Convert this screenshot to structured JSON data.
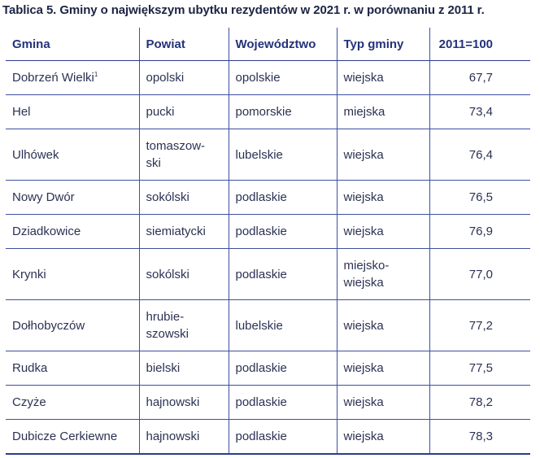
{
  "title": "Tablica 5. Gminy o największym ubytku rezydentów w 2021 r. w porównaniu z 2011 r.",
  "headers": {
    "gmina": "Gmina",
    "powiat": "Powiat",
    "wojewodztwo": "Województwo",
    "typ": "Typ gminy",
    "index": "2011=100"
  },
  "rows": [
    {
      "gmina": "Dobrzeń Wielki",
      "footnote": "1",
      "powiat_l1": "opolski",
      "powiat_l2": "",
      "wojewodztwo": "opolskie",
      "typ_l1": "wiejska",
      "typ_l2": "",
      "index": "67,7"
    },
    {
      "gmina": "Hel",
      "footnote": "",
      "powiat_l1": "pucki",
      "powiat_l2": "",
      "wojewodztwo": "pomorskie",
      "typ_l1": "miejska",
      "typ_l2": "",
      "index": "73,4"
    },
    {
      "gmina": "Ulhówek",
      "footnote": "",
      "powiat_l1": "tomaszow-",
      "powiat_l2": "ski",
      "wojewodztwo": "lubelskie",
      "typ_l1": "wiejska",
      "typ_l2": "",
      "index": "76,4"
    },
    {
      "gmina": "Nowy Dwór",
      "footnote": "",
      "powiat_l1": "sokólski",
      "powiat_l2": "",
      "wojewodztwo": "podlaskie",
      "typ_l1": "wiejska",
      "typ_l2": "",
      "index": "76,5"
    },
    {
      "gmina": "Dziadkowice",
      "footnote": "",
      "powiat_l1": "siemiatycki",
      "powiat_l2": "",
      "wojewodztwo": "podlaskie",
      "typ_l1": "wiejska",
      "typ_l2": "",
      "index": "76,9"
    },
    {
      "gmina": "Krynki",
      "footnote": "",
      "powiat_l1": "sokólski",
      "powiat_l2": "",
      "wojewodztwo": "podlaskie",
      "typ_l1": "miejsko-",
      "typ_l2": "wiejska",
      "index": "77,0"
    },
    {
      "gmina": "Dołhobyczów",
      "footnote": "",
      "powiat_l1": "hrubie-",
      "powiat_l2": "szowski",
      "wojewodztwo": "lubelskie",
      "typ_l1": "wiejska",
      "typ_l2": "",
      "index": "77,2"
    },
    {
      "gmina": "Rudka",
      "footnote": "",
      "powiat_l1": "bielski",
      "powiat_l2": "",
      "wojewodztwo": "podlaskie",
      "typ_l1": "wiejska",
      "typ_l2": "",
      "index": "77,5"
    },
    {
      "gmina": "Czyże",
      "footnote": "",
      "powiat_l1": "hajnowski",
      "powiat_l2": "",
      "wojewodztwo": "podlaskie",
      "typ_l1": "wiejska",
      "typ_l2": "",
      "index": "78,2"
    },
    {
      "gmina": "Dubicze Cerkiewne",
      "footnote": "",
      "powiat_l1": "hajnowski",
      "powiat_l2": "",
      "wojewodztwo": "podlaskie",
      "typ_l1": "wiejska",
      "typ_l2": "",
      "index": "78,3"
    }
  ],
  "colors": {
    "header_text": "#24337a",
    "rule": "#3e4fa0",
    "body_text": "#2b3253"
  }
}
